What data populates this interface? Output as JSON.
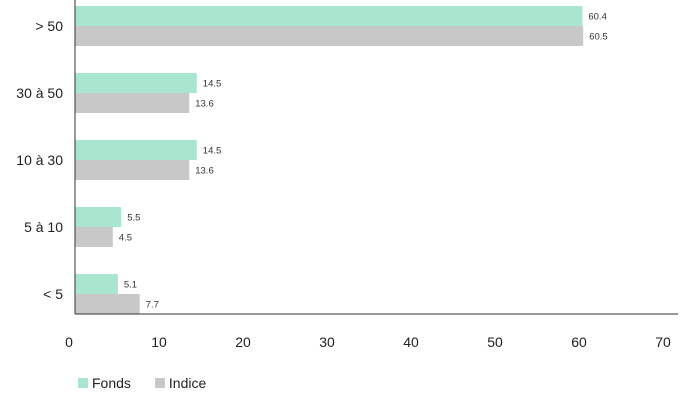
{
  "chart_data": {
    "type": "bar",
    "orientation": "horizontal",
    "categories": [
      "> 50",
      "30 à 50",
      "10 à 30",
      "5 à 10",
      "< 5"
    ],
    "series": [
      {
        "name": "Fonds",
        "values": [
          60.4,
          14.5,
          14.5,
          5.5,
          5.1
        ]
      },
      {
        "name": "Indice",
        "values": [
          60.5,
          13.6,
          13.6,
          4.5,
          7.7
        ]
      }
    ],
    "xlim": [
      0,
      70
    ],
    "xticks": [
      0,
      10,
      20,
      30,
      40,
      50,
      60,
      70
    ],
    "grid": false,
    "legend_position": "bottom-left",
    "colors": {
      "Fonds": "#a8e6cf",
      "Indice": "#c8c8c8",
      "axis": "#333333"
    }
  }
}
